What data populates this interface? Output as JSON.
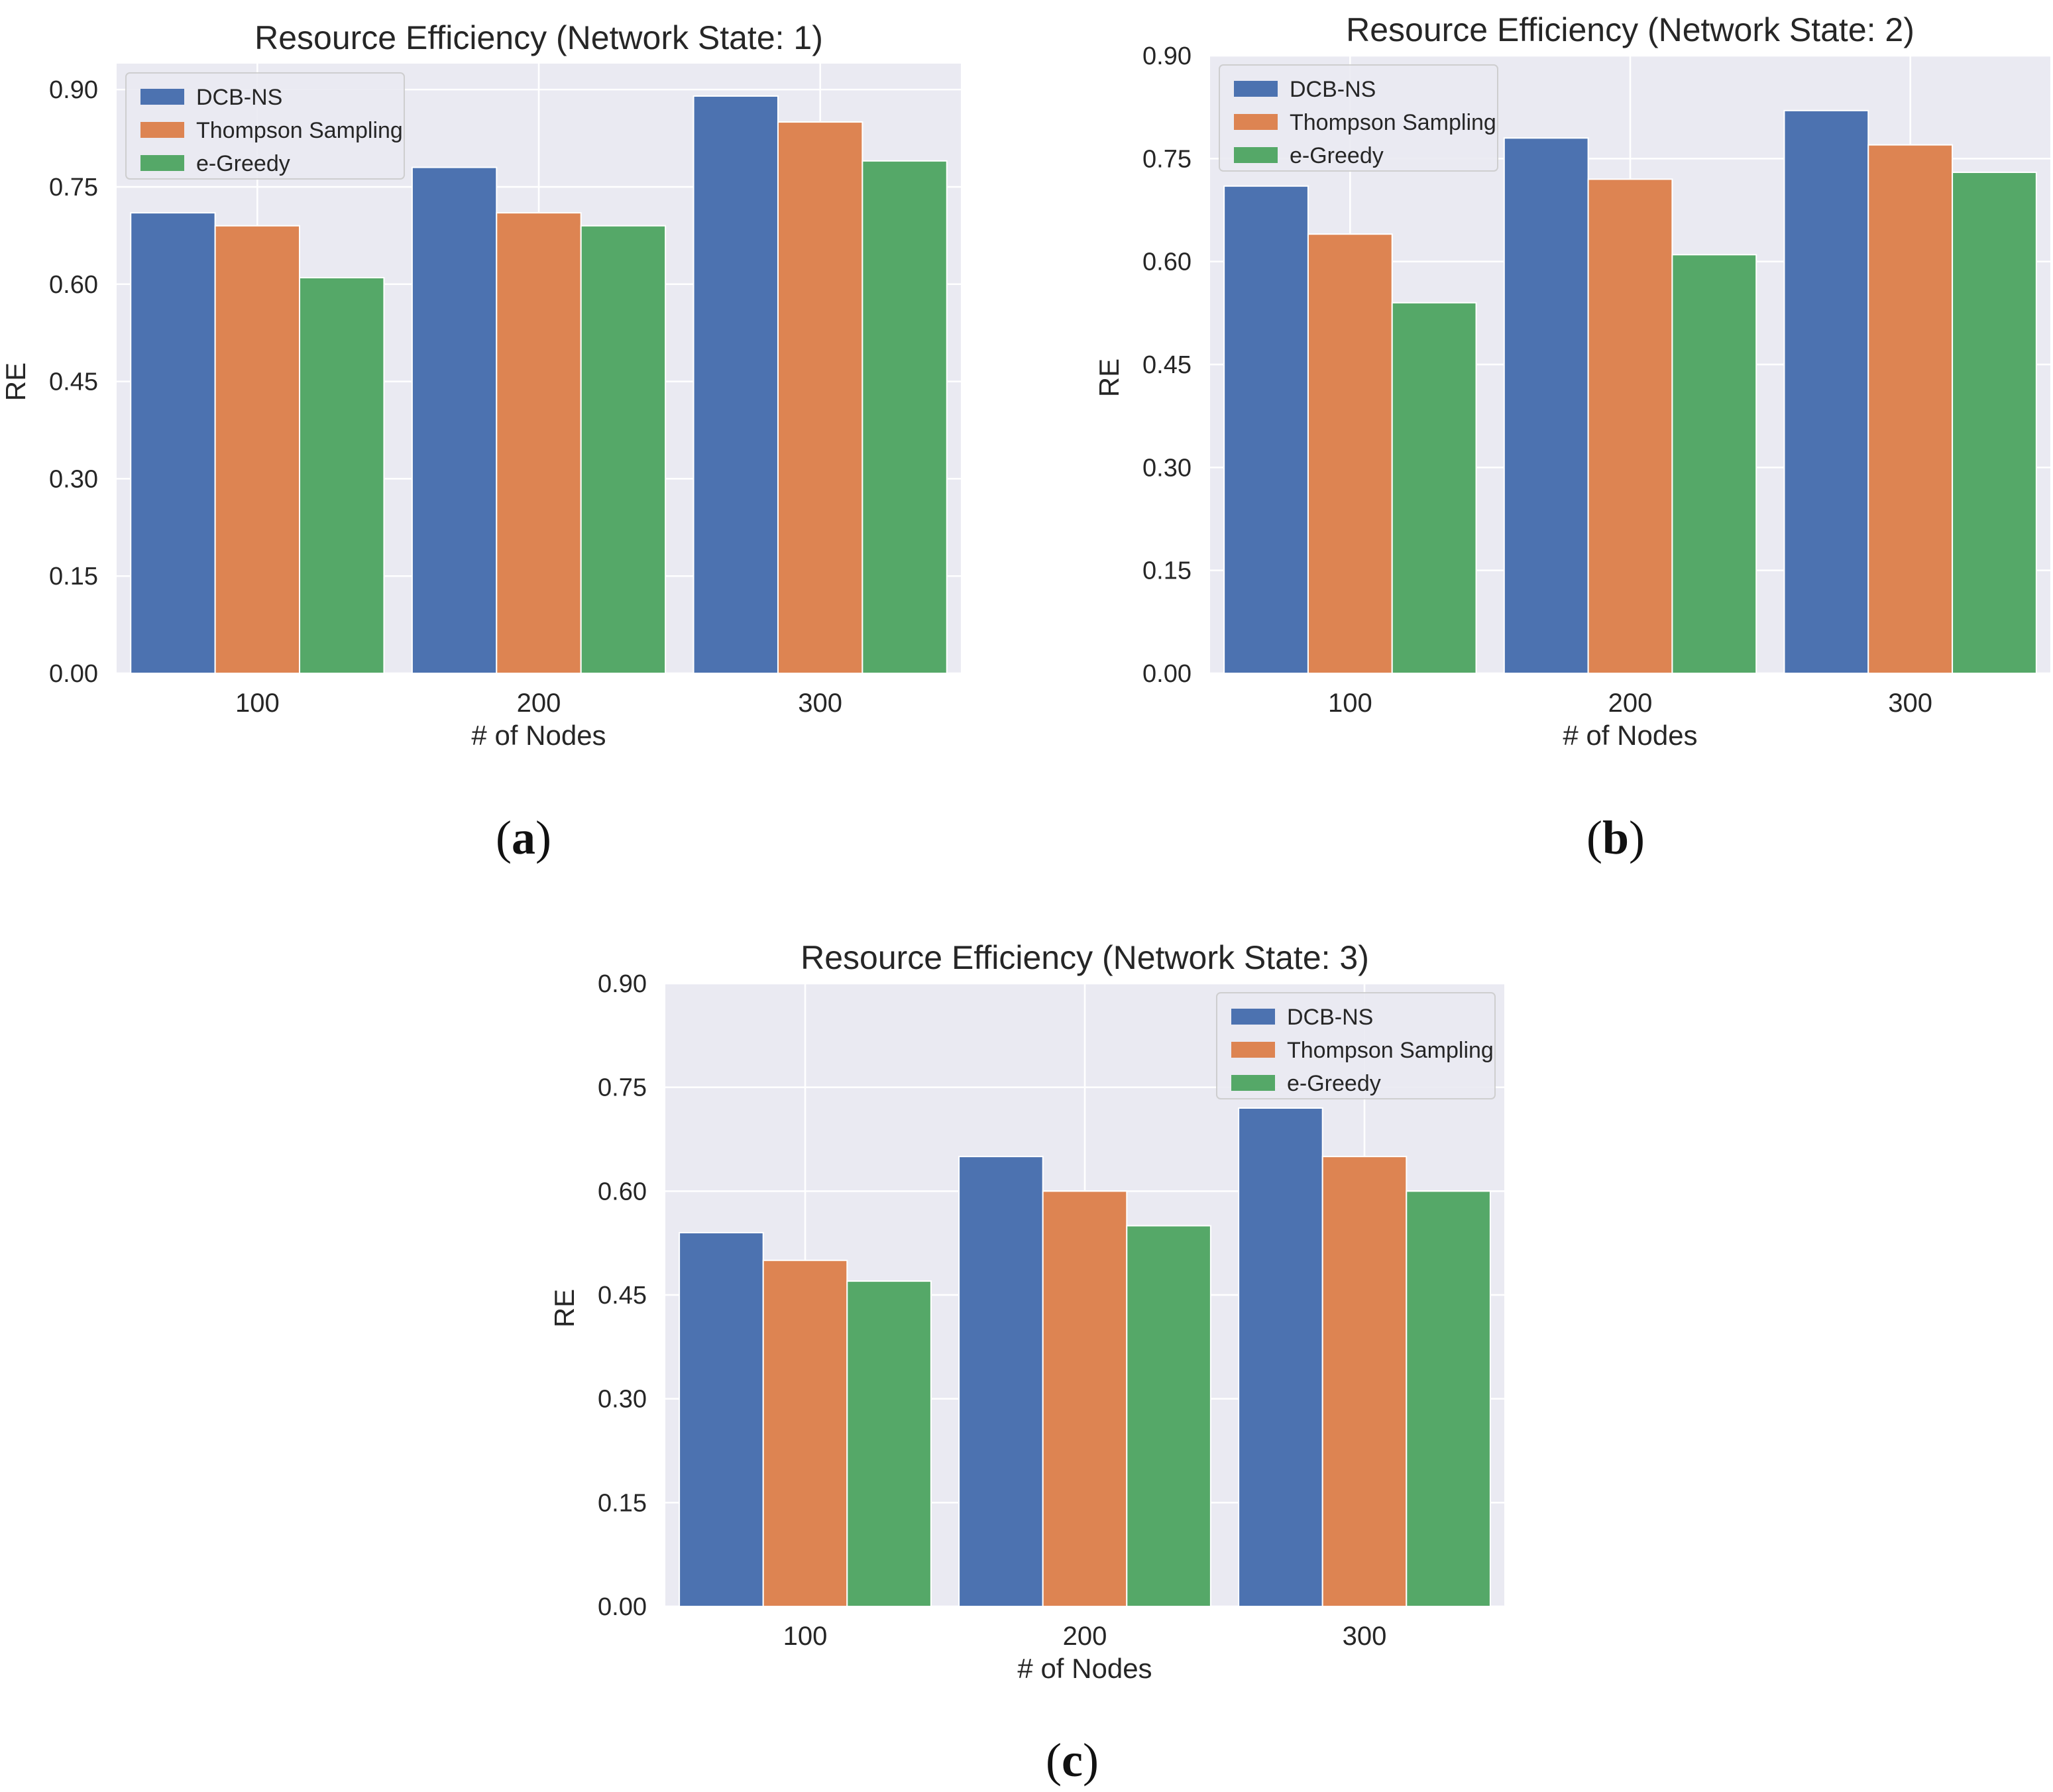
{
  "style": {
    "plot_background": "#eaeaf2",
    "grid_color": "#ffffff",
    "series_colors": [
      "#4c72b0",
      "#dd8452",
      "#55a868"
    ],
    "legend_background": "#eaeaf2",
    "legend_border": "#cccccc"
  },
  "chart_data": [
    {
      "type": "bar",
      "panel_label": "a",
      "title": "Resource Efficiency (Network State: 1)",
      "xlabel": "# of Nodes",
      "ylabel": "RE",
      "categories": [
        "100",
        "200",
        "300"
      ],
      "ylim": [
        0,
        0.94
      ],
      "yticks": [
        "0.00",
        "0.15",
        "0.30",
        "0.45",
        "0.60",
        "0.75",
        "0.90"
      ],
      "grid": true,
      "legend_position": "top-left",
      "series": [
        {
          "name": "DCB-NS",
          "values": [
            0.71,
            0.78,
            0.89
          ]
        },
        {
          "name": "Thompson Sampling",
          "values": [
            0.69,
            0.71,
            0.85
          ]
        },
        {
          "name": "e-Greedy",
          "values": [
            0.61,
            0.69,
            0.79
          ]
        }
      ]
    },
    {
      "type": "bar",
      "panel_label": "b",
      "title": "Resource Efficiency (Network State: 2)",
      "xlabel": "# of Nodes",
      "ylabel": "RE",
      "categories": [
        "100",
        "200",
        "300"
      ],
      "ylim": [
        0,
        0.9
      ],
      "yticks": [
        "0.00",
        "0.15",
        "0.30",
        "0.45",
        "0.60",
        "0.75",
        "0.90"
      ],
      "grid": true,
      "legend_position": "top-left",
      "series": [
        {
          "name": "DCB-NS",
          "values": [
            0.71,
            0.78,
            0.82
          ]
        },
        {
          "name": "Thompson Sampling",
          "values": [
            0.64,
            0.72,
            0.77
          ]
        },
        {
          "name": "e-Greedy",
          "values": [
            0.54,
            0.61,
            0.73
          ]
        }
      ]
    },
    {
      "type": "bar",
      "panel_label": "c",
      "title": "Resource Efficiency (Network State: 3)",
      "xlabel": "# of Nodes",
      "ylabel": "RE",
      "categories": [
        "100",
        "200",
        "300"
      ],
      "ylim": [
        0,
        0.9
      ],
      "yticks": [
        "0.00",
        "0.15",
        "0.30",
        "0.45",
        "0.60",
        "0.75",
        "0.90"
      ],
      "grid": true,
      "legend_position": "top-right",
      "series": [
        {
          "name": "DCB-NS",
          "values": [
            0.54,
            0.65,
            0.72
          ]
        },
        {
          "name": "Thompson Sampling",
          "values": [
            0.5,
            0.6,
            0.65
          ]
        },
        {
          "name": "e-Greedy",
          "values": [
            0.47,
            0.55,
            0.6
          ]
        }
      ]
    }
  ]
}
